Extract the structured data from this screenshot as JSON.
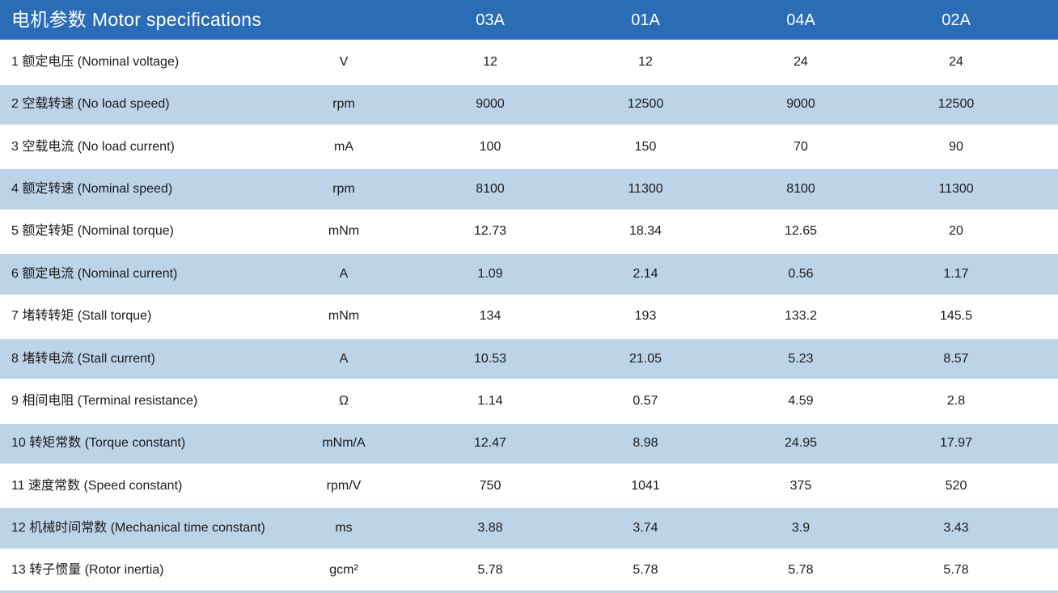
{
  "table": {
    "title": "电机参数 Motor specifications",
    "columns": [
      "03A",
      "01A",
      "04A",
      "02A"
    ],
    "rows": [
      {
        "label": "1 额定电压 (Nominal voltage)",
        "unit": "V",
        "values": [
          "12",
          "12",
          "24",
          "24"
        ]
      },
      {
        "label": "2 空载转速 (No load speed)",
        "unit": "rpm",
        "values": [
          "9000",
          "12500",
          "9000",
          "12500"
        ]
      },
      {
        "label": "3 空载电流 (No load current)",
        "unit": "mA",
        "values": [
          "100",
          "150",
          "70",
          "90"
        ]
      },
      {
        "label": "4 额定转速 (Nominal speed)",
        "unit": "rpm",
        "values": [
          "8100",
          "11300",
          "8100",
          "11300"
        ]
      },
      {
        "label": "5 额定转矩 (Nominal torque)",
        "unit": "mNm",
        "values": [
          "12.73",
          "18.34",
          "12.65",
          "20"
        ]
      },
      {
        "label": "6 额定电流 (Nominal current)",
        "unit": "A",
        "values": [
          "1.09",
          "2.14",
          "0.56",
          "1.17"
        ]
      },
      {
        "label": "7 堵转转矩 (Stall torque)",
        "unit": "mNm",
        "values": [
          "134",
          "193",
          "133.2",
          "145.5"
        ]
      },
      {
        "label": "8 堵转电流 (Stall current)",
        "unit": "A",
        "values": [
          "10.53",
          "21.05",
          "5.23",
          "8.57"
        ]
      },
      {
        "label": "9 相间电阻 (Terminal resistance)",
        "unit": "Ω",
        "values": [
          "1.14",
          "0.57",
          "4.59",
          "2.8"
        ]
      },
      {
        "label": "10 转矩常数 (Torque constant)",
        "unit": "mNm/A",
        "values": [
          "12.47",
          "8.98",
          "24.95",
          "17.97"
        ]
      },
      {
        "label": "11 速度常数 (Speed constant)",
        "unit": "rpm/V",
        "values": [
          "750",
          "1041",
          "375",
          "520"
        ]
      },
      {
        "label": "12 机械时间常数 (Mechanical time constant)",
        "unit": "ms",
        "values": [
          "3.88",
          "3.74",
          "3.9",
          "3.43"
        ]
      },
      {
        "label": "13 转子惯量 (Rotor inertia)",
        "unit": "gcm²",
        "values": [
          "5.78",
          "5.78",
          "5.78",
          "5.78"
        ]
      }
    ],
    "colors": {
      "header_bg": "#2a6cb5",
      "header_text": "#ffffff",
      "row_bg": "#ffffff",
      "row_alt_bg": "#bdd3e8",
      "body_text": "#1c1c1c"
    }
  }
}
